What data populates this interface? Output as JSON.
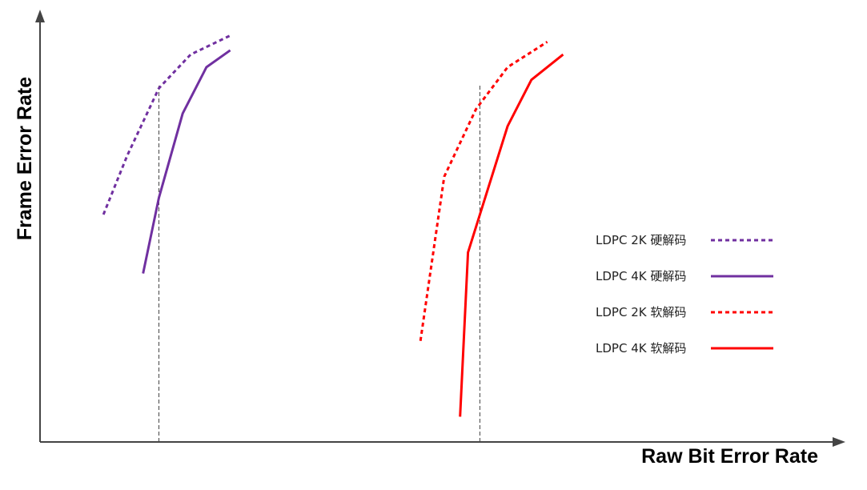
{
  "chart_data": {
    "type": "line",
    "xlabel": "Raw Bit Error Rate",
    "ylabel": "Frame Error Rate",
    "grid": false,
    "legend_position": "right",
    "series": [
      {
        "name": "LDPC 2K 硬解码",
        "style": "dashed",
        "color": "#7030a0",
        "points": [
          [
            0.08,
            0.54
          ],
          [
            0.11,
            0.68
          ],
          [
            0.15,
            0.84
          ],
          [
            0.19,
            0.92
          ],
          [
            0.24,
            0.965
          ]
        ]
      },
      {
        "name": "LDPC 4K 硬解码",
        "style": "solid",
        "color": "#7030a0",
        "points": [
          [
            0.13,
            0.4
          ],
          [
            0.15,
            0.58
          ],
          [
            0.18,
            0.78
          ],
          [
            0.21,
            0.89
          ],
          [
            0.24,
            0.93
          ]
        ]
      },
      {
        "name": "LDPC 2K 软解码",
        "style": "dashed",
        "color": "#ff0000",
        "points": [
          [
            0.48,
            0.24
          ],
          [
            0.51,
            0.63
          ],
          [
            0.55,
            0.79
          ],
          [
            0.59,
            0.89
          ],
          [
            0.64,
            0.95
          ]
        ]
      },
      {
        "name": "LDPC 4K 软解码",
        "style": "solid",
        "color": "#ff0000",
        "points": [
          [
            0.53,
            0.06
          ],
          [
            0.54,
            0.45
          ],
          [
            0.59,
            0.75
          ],
          [
            0.62,
            0.86
          ],
          [
            0.66,
            0.92
          ]
        ]
      }
    ],
    "reference_lines": [
      {
        "style": "dashed",
        "color": "#444444",
        "x": 0.15
      },
      {
        "style": "dashed",
        "color": "#444444",
        "x": 0.555
      }
    ]
  }
}
